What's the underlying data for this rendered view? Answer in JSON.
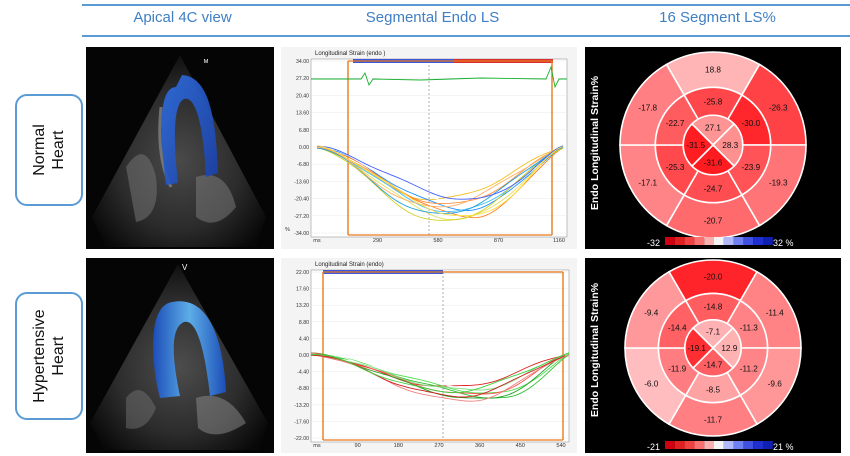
{
  "columns": [
    "Apical 4C view",
    "Segmental Endo LS",
    "16 Segment LS%"
  ],
  "rows": [
    {
      "label_line1": "Normal",
      "label_line2": "Heart"
    },
    {
      "label_line1": "Hypertensive",
      "label_line2": "Heart"
    }
  ],
  "echo": [
    {
      "marker": "ᴹ"
    },
    {
      "marker": "V"
    }
  ],
  "strain_charts": [
    {
      "title": "Longitudinal Strain (endo )",
      "y_ticks": [
        "34.00",
        "27.20",
        "20.40",
        "13.60",
        "6.80",
        "0.00",
        "-6.80",
        "-13.60",
        "-20.40",
        "-27.20",
        "-34.00"
      ],
      "x_ticks": [
        "ms",
        "290",
        "580",
        "870",
        "1160"
      ],
      "y_unit": "%"
    },
    {
      "title": "Longitudinal Strain (endo)",
      "y_ticks": [
        "22.00",
        "17.60",
        "13.20",
        "8.80",
        "4.40",
        "0.00",
        "-4.40",
        "-8.80",
        "-13.20",
        "-17.60",
        "-22.00"
      ],
      "x_ticks": [
        "ms",
        "90",
        "180",
        "270",
        "360",
        "450",
        "540"
      ],
      "y_unit": ""
    }
  ],
  "bullseyes": [
    {
      "axis_label": "Endo Longitudinal Strain%",
      "cbar_min": "-32",
      "cbar_max": "32 %",
      "segments": {
        "basal": [
          "18.8",
          "-26.3",
          "-19.3",
          "-20.7",
          "-17.1",
          "-17.8"
        ],
        "mid": [
          "-25.8",
          "-30.0",
          "-23.9",
          "-24.7",
          "-25.3",
          "-22.7"
        ],
        "apical": [
          "27.1",
          "28.3",
          "-31.6",
          "-31.5"
        ]
      }
    },
    {
      "axis_label": "Endo Longitudinal Strain%",
      "cbar_min": "-21",
      "cbar_max": "21 %",
      "segments": {
        "basal": [
          "-20.0",
          "-11.4",
          "-9.6",
          "-11.7",
          "-6.0",
          "-9.4"
        ],
        "mid": [
          "-14.8",
          "-11.3",
          "-11.2",
          "-8.5",
          "-11.9",
          "-14.4"
        ],
        "apical": [
          "-7.1",
          "12.9",
          "-14.7",
          "-19.1"
        ]
      }
    }
  ],
  "colors": {
    "accent": "#5b9bd5",
    "title": "#3f7fc4",
    "segment_red": "#e8121e",
    "frame_orange": "#e87a1e"
  }
}
